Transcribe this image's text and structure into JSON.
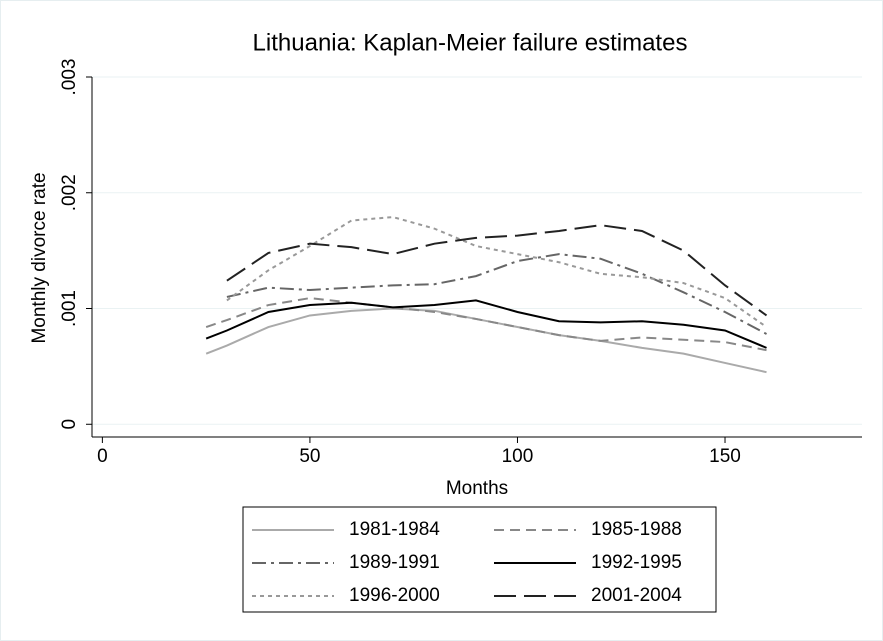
{
  "chart_data": {
    "type": "line",
    "title": "Lithuania: Kaplan-Meier failure estimates",
    "xlabel": "Months",
    "ylabel": "Monthly divorce rate",
    "x": [
      25,
      30,
      40,
      50,
      60,
      70,
      80,
      90,
      100,
      110,
      120,
      130,
      140,
      150,
      160
    ],
    "series": [
      {
        "name": "1981-1984",
        "color": "#aaaaaa",
        "dash": "solid",
        "values": [
          0.00061,
          0.00068,
          0.00084,
          0.00094,
          0.00098,
          0.001,
          0.00098,
          0.00091,
          0.00084,
          0.00077,
          0.00072,
          0.00066,
          0.00061,
          0.00053,
          0.00045
        ]
      },
      {
        "name": "1985-1988",
        "color": "#888888",
        "dash": "dashed",
        "values": [
          0.00084,
          0.0009,
          0.00103,
          0.00109,
          0.00105,
          0.00101,
          0.00097,
          0.00091,
          0.00084,
          0.00077,
          0.00072,
          0.00075,
          0.00073,
          0.00071,
          0.00064
        ]
      },
      {
        "name": "1989-1991",
        "color": "#666666",
        "dash": "dashdot",
        "values": [
          null,
          0.0011,
          0.00118,
          0.00116,
          0.00118,
          0.0012,
          0.00121,
          0.00128,
          0.00141,
          0.00147,
          0.00143,
          0.0013,
          0.00114,
          0.00097,
          0.00078
        ]
      },
      {
        "name": "1992-1995",
        "color": "#000000",
        "dash": "solid",
        "values": [
          0.00074,
          0.00081,
          0.00097,
          0.00103,
          0.00105,
          0.00101,
          0.00103,
          0.00107,
          0.00097,
          0.00089,
          0.00088,
          0.00089,
          0.00086,
          0.00081,
          0.00066
        ]
      },
      {
        "name": "1996-2000",
        "color": "#999999",
        "dash": "dotted",
        "values": [
          null,
          0.00107,
          0.00133,
          0.00154,
          0.00176,
          0.00179,
          0.00169,
          0.00154,
          0.00147,
          0.0014,
          0.0013,
          0.00127,
          0.00122,
          0.00109,
          0.00084
        ]
      },
      {
        "name": "2001-2004",
        "color": "#222222",
        "dash": "longdash",
        "values": [
          null,
          0.00124,
          0.00148,
          0.00156,
          0.00153,
          0.00147,
          0.00156,
          0.00161,
          0.00163,
          0.00167,
          0.00172,
          0.00167,
          0.0015,
          0.0012,
          0.00094
        ]
      }
    ],
    "xlim": [
      -2.5,
      183
    ],
    "xticks": [
      0,
      50,
      100,
      150
    ],
    "ylim": [
      -0.00011,
      0.003
    ],
    "yticks": [
      0,
      {
        "value": 0.001,
        "label": ".001"
      },
      {
        "value": 0.002,
        "label": ".002"
      },
      {
        "value": 0.003,
        "label": ".003"
      }
    ],
    "grid": true,
    "legend": "bottom"
  }
}
